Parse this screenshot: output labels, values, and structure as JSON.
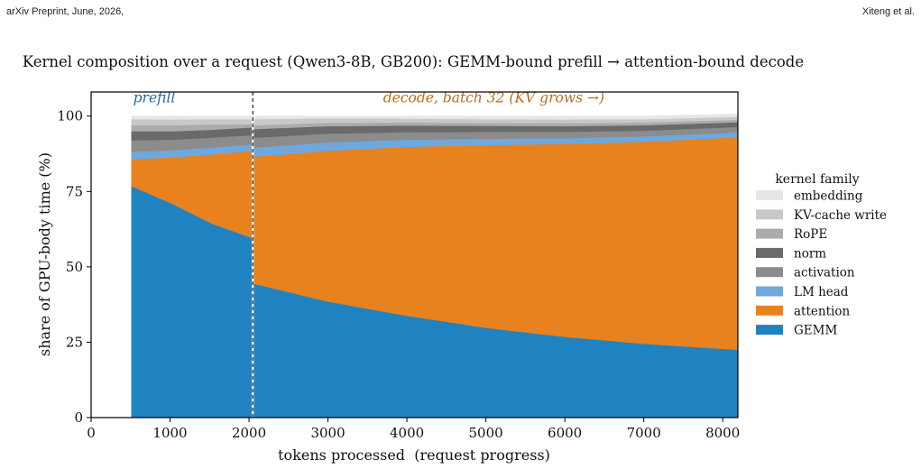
{
  "header": {
    "left": "arXiv Preprint, June, 2026,",
    "right": "Xiteng et al."
  },
  "chart_data": {
    "type": "area",
    "title": "Kernel composition over a request (Qwen3-8B, GB200): GEMM-bound prefill → attention-bound decode",
    "xlabel": "tokens processed  (request progress)",
    "ylabel": "share of GPU-body time (%)",
    "xlim": [
      0,
      8192
    ],
    "ylim": [
      0,
      108
    ],
    "xticks": [
      0,
      1000,
      2000,
      3000,
      4000,
      5000,
      6000,
      7000,
      8000
    ],
    "yticks": [
      0,
      25,
      50,
      75,
      100
    ],
    "stacked": true,
    "grid": false,
    "legend": {
      "title": "kernel family",
      "placement": "right"
    },
    "phase_boundary_x": 2048,
    "annotations": [
      {
        "text": "prefill",
        "x": 800,
        "y": 104.5,
        "color": "#1f6aa8"
      },
      {
        "text": "decode, batch 32 (KV grows →)",
        "x": 5100,
        "y": 104.5,
        "color": "#b86e1c"
      }
    ],
    "x": [
      512,
      1024,
      1536,
      2048,
      2049,
      3000,
      4000,
      5000,
      6000,
      7000,
      8192
    ],
    "series": [
      {
        "name": "GEMM",
        "color": "#1f83c1",
        "values": [
          76.8,
          71.0,
          64.3,
          59.5,
          44.5,
          38.5,
          33.8,
          29.8,
          26.8,
          24.5,
          22.5
        ]
      },
      {
        "name": "attention",
        "color": "#e8821e",
        "values": [
          8.9,
          15.3,
          23.0,
          29.0,
          42.0,
          50.0,
          56.0,
          60.6,
          64.0,
          67.0,
          70.5
        ]
      },
      {
        "name": "LM head",
        "color": "#6ea8dc",
        "values": [
          2.5,
          2.4,
          2.3,
          2.2,
          3.0,
          2.8,
          2.4,
          2.1,
          1.9,
          1.8,
          1.6
        ]
      },
      {
        "name": "activation",
        "color": "#8c8c8c",
        "values": [
          3.8,
          3.5,
          3.3,
          3.0,
          3.3,
          2.9,
          2.5,
          2.3,
          2.1,
          1.9,
          1.8
        ]
      },
      {
        "name": "norm",
        "color": "#6a6a6a",
        "values": [
          3.0,
          2.8,
          2.6,
          2.6,
          2.9,
          2.5,
          2.2,
          2.0,
          1.9,
          1.8,
          1.6
        ]
      },
      {
        "name": "RoPE",
        "color": "#ababab",
        "values": [
          2.0,
          2.0,
          1.8,
          1.0,
          1.3,
          1.1,
          1.0,
          1.0,
          1.0,
          0.9,
          0.8
        ]
      },
      {
        "name": "KV-cache write",
        "color": "#c8c8c8",
        "values": [
          2.0,
          1.9,
          1.7,
          1.7,
          2.0,
          1.5,
          1.3,
          1.2,
          1.2,
          1.1,
          1.0
        ]
      },
      {
        "name": "embedding",
        "color": "#e6e6e6",
        "values": [
          1.0,
          1.1,
          1.0,
          1.0,
          1.0,
          0.7,
          0.8,
          1.0,
          1.1,
          1.0,
          0.9
        ]
      }
    ]
  }
}
